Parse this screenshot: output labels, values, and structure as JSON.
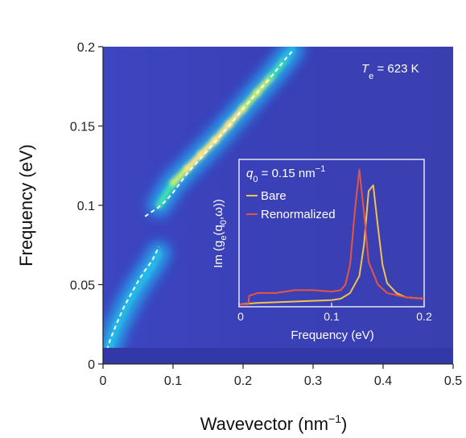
{
  "chart_data": [
    {
      "type": "heatmap",
      "title": "",
      "xlabel": "Wavevector (nm",
      "xlabel_sup": "−1",
      "xlabel_end": ")",
      "ylabel": "Frequency (eV)",
      "xlim": [
        0,
        0.5
      ],
      "ylim": [
        0,
        0.2
      ],
      "xticks": [
        0,
        0.1,
        0.2,
        0.3,
        0.4,
        0.5
      ],
      "xtick_labels": [
        "0",
        "0.1",
        "0.2",
        "0.3",
        "0.4",
        "0.5"
      ],
      "yticks": [
        0,
        0.05,
        0.1,
        0.15,
        0.2
      ],
      "ytick_labels": [
        "0",
        "0.05",
        "0.1",
        "0.15",
        "0.2"
      ],
      "annotation": {
        "symbol": "T",
        "subscript": "e",
        "text": " = 623 K"
      },
      "colormap": [
        "#3a3fb8",
        "#2f74e0",
        "#25b8e6",
        "#3fe0b0",
        "#c8f070",
        "#ffe680"
      ],
      "data_window_xlim": [
        0,
        0.27
      ],
      "ridge": {
        "upper": {
          "x": [
            0.08,
            0.1,
            0.12,
            0.14,
            0.16,
            0.18,
            0.2,
            0.22,
            0.24,
            0.26,
            0.27
          ],
          "y": [
            0.1,
            0.114,
            0.123,
            0.132,
            0.141,
            0.151,
            0.161,
            0.171,
            0.181,
            0.192,
            0.198
          ],
          "intensity": [
            0.55,
            0.85,
            0.95,
            0.98,
            1.0,
            0.98,
            0.92,
            0.85,
            0.75,
            0.6,
            0.5
          ]
        },
        "lower": {
          "x": [
            0.0,
            0.01,
            0.02,
            0.04,
            0.06,
            0.07,
            0.08
          ],
          "y": [
            0.002,
            0.012,
            0.024,
            0.042,
            0.056,
            0.062,
            0.07
          ],
          "intensity": [
            0.4,
            0.45,
            0.45,
            0.5,
            0.55,
            0.55,
            0.5
          ]
        }
      },
      "dashed_curves": [
        {
          "color": "#ffffff",
          "x": [
            0.06,
            0.07,
            0.08,
            0.09,
            0.1,
            0.11,
            0.12,
            0.14,
            0.16,
            0.18,
            0.2,
            0.22,
            0.24,
            0.26,
            0.27
          ],
          "y": [
            0.093,
            0.096,
            0.099,
            0.103,
            0.108,
            0.114,
            0.12,
            0.13,
            0.14,
            0.15,
            0.161,
            0.171,
            0.181,
            0.192,
            0.197
          ]
        },
        {
          "color": "#ffffff",
          "x": [
            0.0,
            0.005,
            0.01,
            0.02,
            0.03,
            0.04,
            0.05,
            0.06,
            0.07,
            0.08
          ],
          "y": [
            0.0,
            0.008,
            0.015,
            0.026,
            0.036,
            0.044,
            0.052,
            0.059,
            0.065,
            0.074
          ]
        }
      ]
    },
    {
      "type": "line",
      "title": "",
      "header": {
        "symbol": "q",
        "subscript": "0",
        "text": " = 0.15 nm",
        "sup": "−1"
      },
      "xlabel": "Frequency (eV)",
      "ylabel": "Im (g",
      "ylabel_sub": "e",
      "ylabel_mid": "(q",
      "ylabel_sub2": "0",
      "ylabel_end": ",ω))",
      "xlim": [
        0,
        0.2
      ],
      "ylim": [
        0,
        1.0
      ],
      "xticks": [
        0,
        0.1,
        0.2
      ],
      "xtick_labels": [
        "0",
        "0.1",
        "0.2"
      ],
      "legend": "top-left",
      "series": [
        {
          "name": "Bare",
          "color": "#f2c14e",
          "x": [
            0.0,
            0.02,
            0.04,
            0.06,
            0.08,
            0.1,
            0.11,
            0.12,
            0.13,
            0.135,
            0.14,
            0.145,
            0.15,
            0.155,
            0.16,
            0.17,
            0.18,
            0.2
          ],
          "y": [
            0.0,
            0.01,
            0.015,
            0.02,
            0.025,
            0.03,
            0.04,
            0.08,
            0.2,
            0.42,
            0.8,
            0.84,
            0.55,
            0.28,
            0.15,
            0.08,
            0.05,
            0.04
          ]
        },
        {
          "name": "Renormalized",
          "color": "#e8553e",
          "x": [
            0.0,
            0.01,
            0.011,
            0.02,
            0.04,
            0.06,
            0.08,
            0.1,
            0.11,
            0.115,
            0.12,
            0.125,
            0.13,
            0.135,
            0.14,
            0.15,
            0.16,
            0.18,
            0.2
          ],
          "y": [
            0.0,
            0.0,
            0.06,
            0.08,
            0.08,
            0.1,
            0.1,
            0.09,
            0.1,
            0.14,
            0.28,
            0.65,
            0.95,
            0.65,
            0.3,
            0.14,
            0.08,
            0.05,
            0.04
          ]
        }
      ]
    }
  ]
}
